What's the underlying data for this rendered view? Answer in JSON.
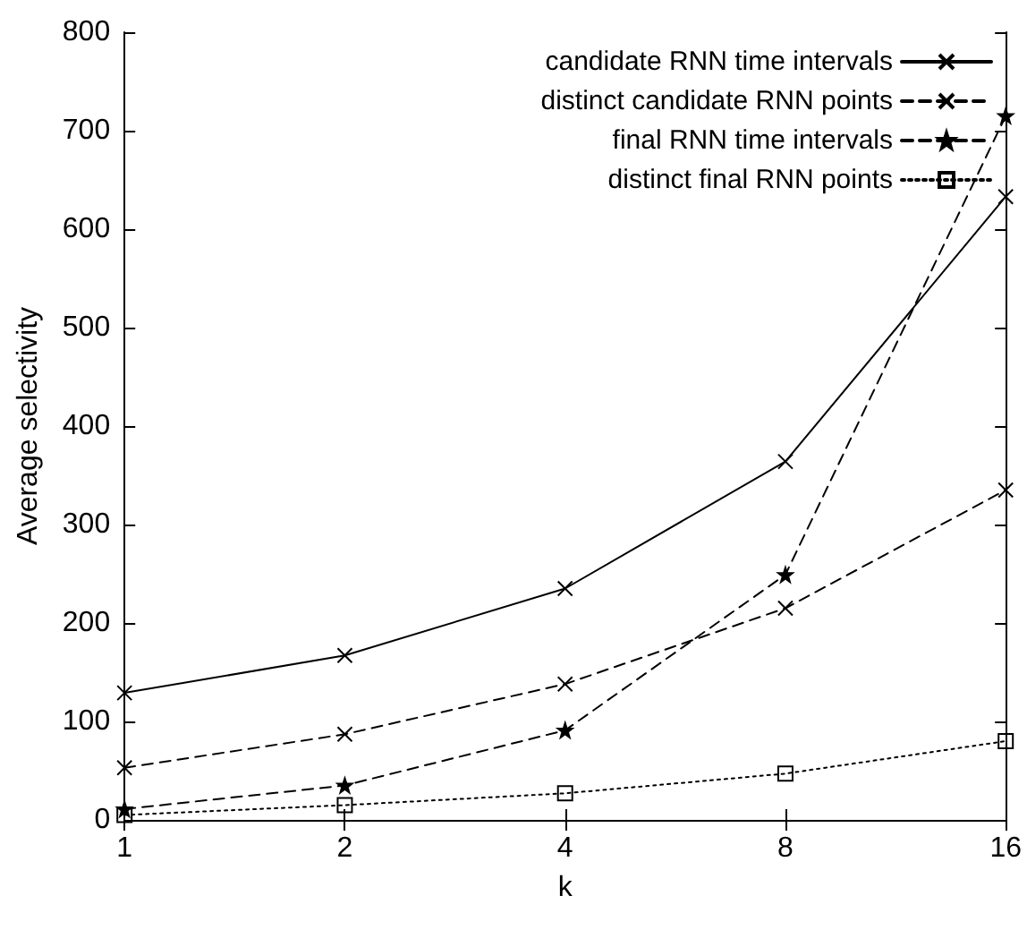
{
  "chart_data": {
    "type": "line",
    "xlabel": "k",
    "ylabel": "Average selectivity",
    "x": [
      1,
      2,
      4,
      8,
      16
    ],
    "log": "x",
    "xlim": [
      1,
      16
    ],
    "xticks": [
      1,
      2,
      4,
      8,
      16
    ],
    "ylim": [
      0,
      800
    ],
    "yticks": [
      0,
      100,
      200,
      300,
      400,
      500,
      600,
      700,
      800
    ],
    "grid": false,
    "legend": "top right",
    "series": [
      {
        "name": "candidate RNN time intervals",
        "color": "#000000",
        "marker": "cross",
        "line_style": "solid",
        "values": [
          129,
          167,
          235,
          364,
          633
        ]
      },
      {
        "name": "distinct candidate RNN points",
        "color": "#000000",
        "marker": "cross",
        "line_style": "dashed",
        "values": [
          53,
          87,
          138,
          215,
          335
        ]
      },
      {
        "name": "final RNN time intervals",
        "color": "#000000",
        "marker": "star",
        "line_style": "dashed",
        "values": [
          11,
          35,
          91,
          249,
          715
        ]
      },
      {
        "name": "distinct final RNN points",
        "color": "#000000",
        "marker": "square",
        "line_style": "dotted",
        "values": [
          5,
          15,
          27,
          47,
          80
        ]
      }
    ]
  }
}
